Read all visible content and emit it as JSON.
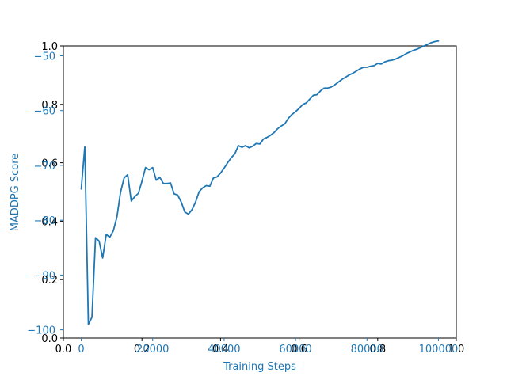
{
  "chart_data": {
    "type": "line",
    "xlabel": "Training Steps",
    "ylabel": "MADDPG Score",
    "xlim": [
      -5000,
      105000
    ],
    "ylim": [
      -101.5,
      -48.2
    ],
    "xticks": [
      0,
      20000,
      40000,
      60000,
      80000,
      100000
    ],
    "xtick_labels": [
      "0",
      "20000",
      "40000",
      "60000",
      "80000",
      "100000"
    ],
    "yticks": [
      -100,
      -90,
      -80,
      -70,
      -60,
      -50
    ],
    "ytick_labels": [
      "−100",
      "−90",
      "−80",
      "−70",
      "−60",
      "−50"
    ],
    "overlay_ticks": [
      0.0,
      0.2,
      0.4,
      0.6,
      0.8,
      1.0
    ],
    "overlay_tick_labels": [
      "0.0",
      "0.2",
      "0.4",
      "0.6",
      "0.8",
      "1.0"
    ],
    "series": [
      {
        "color": "#1f77b4",
        "x": [
          0,
          1000,
          2000,
          3000,
          4000,
          5000,
          6000,
          7000,
          8000,
          9000,
          10000,
          11000,
          12000,
          13000,
          14000,
          15000,
          16000,
          17000,
          18000,
          19000,
          20000,
          21000,
          22000,
          23000,
          24000,
          25000,
          26000,
          27000,
          28000,
          29000,
          30000,
          31000,
          32000,
          33000,
          34000,
          35000,
          36000,
          37000,
          38000,
          39000,
          40000,
          41000,
          42000,
          43000,
          44000,
          45000,
          46000,
          47000,
          48000,
          49000,
          50000,
          51000,
          52000,
          53000,
          54000,
          55000,
          56000,
          57000,
          58000,
          59000,
          60000,
          61000,
          62000,
          63000,
          64000,
          65000,
          66000,
          67000,
          68000,
          69000,
          70000,
          71000,
          72000,
          73000,
          74000,
          75000,
          76000,
          77000,
          78000,
          79000,
          80000,
          81000,
          82000,
          83000,
          84000,
          85000,
          86000,
          87000,
          88000,
          89000,
          90000,
          91000,
          92000,
          93000,
          94000,
          95000,
          96000,
          97000,
          98000,
          99000,
          100000
        ],
        "y": [
          -74.3,
          -66.6,
          -99.0,
          -97.7,
          -83.2,
          -83.8,
          -86.9,
          -82.6,
          -83.1,
          -81.9,
          -79.4,
          -74.9,
          -72.3,
          -71.7,
          -76.5,
          -75.7,
          -75.1,
          -72.9,
          -70.4,
          -70.8,
          -70.4,
          -72.7,
          -72.2,
          -73.3,
          -73.3,
          -73.2,
          -75.2,
          -75.4,
          -76.7,
          -78.5,
          -78.9,
          -78.1,
          -76.7,
          -74.8,
          -74.1,
          -73.7,
          -73.8,
          -72.3,
          -72.1,
          -71.4,
          -70.5,
          -69.5,
          -68.6,
          -67.9,
          -66.4,
          -66.7,
          -66.4,
          -66.8,
          -66.5,
          -66.0,
          -66.1,
          -65.2,
          -64.9,
          -64.5,
          -64.0,
          -63.3,
          -62.8,
          -62.4,
          -61.4,
          -60.7,
          -60.2,
          -59.6,
          -58.9,
          -58.6,
          -57.9,
          -57.2,
          -57.1,
          -56.4,
          -55.9,
          -55.9,
          -55.7,
          -55.3,
          -54.8,
          -54.3,
          -53.9,
          -53.5,
          -53.2,
          -52.8,
          -52.4,
          -52.1,
          -52.1,
          -51.9,
          -51.8,
          -51.4,
          -51.5,
          -51.1,
          -50.9,
          -50.8,
          -50.6,
          -50.3,
          -50.0,
          -49.6,
          -49.3,
          -49.0,
          -48.8,
          -48.5,
          -48.2,
          -47.9,
          -47.6,
          -47.4,
          -47.3
        ]
      }
    ]
  }
}
